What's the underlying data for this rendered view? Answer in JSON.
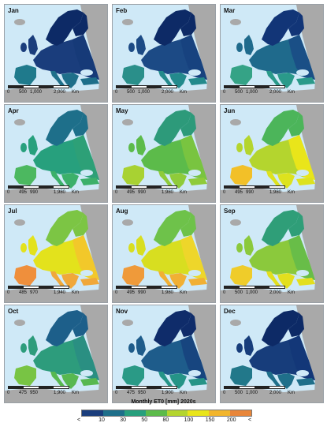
{
  "panels": [
    {
      "month": "Jan",
      "scale": [
        "0",
        "500",
        "1,000",
        "2,000",
        "Km"
      ],
      "colors": {
        "main": "#1a3d7c",
        "south": "#1e6f8a",
        "north": "#0d2a66",
        "east": "#163a78",
        "iberia": "#1f7a8c"
      }
    },
    {
      "month": "Feb",
      "scale": [
        "0",
        "500",
        "1,000",
        "2,000",
        "Km"
      ],
      "colors": {
        "main": "#1c4a85",
        "south": "#238a8c",
        "north": "#0d2a66",
        "east": "#17427f",
        "iberia": "#2a8f8a"
      }
    },
    {
      "month": "Mar",
      "scale": [
        "0",
        "500",
        "1,000",
        "2,000",
        "Km"
      ],
      "colors": {
        "main": "#1f6a8c",
        "south": "#2a9a8a",
        "north": "#123577",
        "east": "#1a4f86",
        "iberia": "#35a386"
      }
    },
    {
      "month": "Apr",
      "scale": [
        "0",
        "495",
        "990",
        "1,980",
        "Km"
      ],
      "colors": {
        "main": "#27a07d",
        "south": "#3cb06a",
        "north": "#1e6f8a",
        "east": "#2da077",
        "iberia": "#4cb860"
      }
    },
    {
      "month": "May",
      "scale": [
        "0",
        "495",
        "990",
        "1,980",
        "Km"
      ],
      "colors": {
        "main": "#5cbb4a",
        "south": "#8fcb3a",
        "north": "#2d9a7a",
        "east": "#79c440",
        "iberia": "#a8d232"
      }
    },
    {
      "month": "Jun",
      "scale": [
        "0",
        "495",
        "990",
        "1,980",
        "Km"
      ],
      "colors": {
        "main": "#b4d52e",
        "south": "#dde21e",
        "north": "#4cb55a",
        "east": "#e9e51a",
        "iberia": "#f2c028"
      }
    },
    {
      "month": "Jul",
      "scale": [
        "0",
        "485",
        "970",
        "1,940",
        "Km"
      ],
      "colors": {
        "main": "#e3e21c",
        "south": "#f0a83a",
        "north": "#7cc544",
        "east": "#f2c82a",
        "iberia": "#ef8f3c"
      }
    },
    {
      "month": "Aug",
      "scale": [
        "0",
        "495",
        "990",
        "1,980",
        "Km"
      ],
      "colors": {
        "main": "#d8de20",
        "south": "#f1b034",
        "north": "#6ec24a",
        "east": "#eed62a",
        "iberia": "#ef9a3a"
      }
    },
    {
      "month": "Sep",
      "scale": [
        "0",
        "500",
        "1,000",
        "2,000",
        "Km"
      ],
      "colors": {
        "main": "#8bc93c",
        "south": "#e3df1e",
        "north": "#2f9e78",
        "east": "#68bd48",
        "iberia": "#efcc2a"
      }
    },
    {
      "month": "Oct",
      "scale": [
        "0",
        "475",
        "950",
        "1,900",
        "Km"
      ],
      "colors": {
        "main": "#2d9c7c",
        "south": "#58b850",
        "north": "#1d5f8a",
        "east": "#2a8f82",
        "iberia": "#78c444"
      }
    },
    {
      "month": "Nov",
      "scale": [
        "0",
        "475",
        "950",
        "1,900",
        "Km"
      ],
      "colors": {
        "main": "#1e5c8b",
        "south": "#259487",
        "north": "#0f2c6a",
        "east": "#17457f",
        "iberia": "#2a9a86"
      }
    },
    {
      "month": "Dec",
      "scale": [
        "0",
        "500",
        "1,000",
        "2,000",
        "Km"
      ],
      "colors": {
        "main": "#173d7b",
        "south": "#1f6f8a",
        "north": "#0d2a66",
        "east": "#133778",
        "iberia": "#22788a"
      }
    }
  ],
  "legend": {
    "title": "Monthly ET0 [mm] 2020s",
    "labels": [
      "<",
      "10",
      "30",
      "50",
      "80",
      "100",
      "150",
      "200",
      "<"
    ],
    "colors": [
      "#1a3d7c",
      "#1e6f8a",
      "#27a07d",
      "#5cbb4a",
      "#b4d52e",
      "#e9e51a",
      "#f2b52c",
      "#e8863a"
    ]
  },
  "colors": {
    "sea": "#cfe9f7",
    "outside_land": "#a9a9a9",
    "iceland": "#a9a9a9"
  }
}
